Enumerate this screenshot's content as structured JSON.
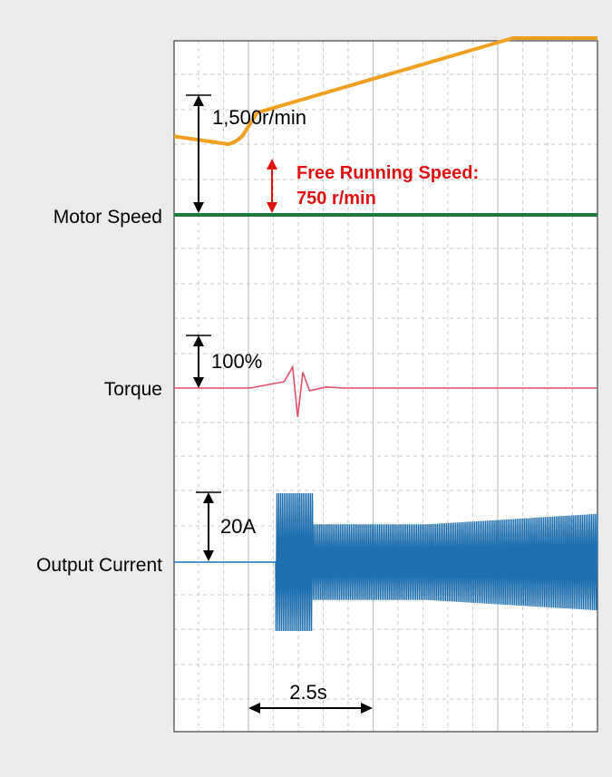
{
  "colors": {
    "background": "#ebebeb",
    "plot_background": "#ffffff",
    "motor_speed_reference": "#1b7a3a",
    "motor_speed": "#f0a020",
    "torque": "#e0506a",
    "output_current": "#1f6fae",
    "annotation": "#000000",
    "free_running_annotation": "#e01010",
    "grid": "#bbbbbb"
  },
  "labels": {
    "motor_speed": "Motor Speed",
    "torque": "Torque",
    "output_current": "Output Current"
  },
  "annotations": {
    "speed_scale": "1,500r/min",
    "free_running_line1": "Free Running Speed:",
    "free_running_line2": "750 r/min",
    "torque_scale": "100%",
    "current_scale": "20A",
    "time_scale": "2.5s"
  },
  "chart_data": {
    "type": "line",
    "grid": true,
    "x_unit": "s",
    "time_scale_division": 2.5,
    "series": [
      {
        "name": "Motor Speed",
        "unit": "r/min",
        "points": [
          [
            0,
            1000
          ],
          [
            3.2,
            900
          ],
          [
            4.2,
            1060
          ],
          [
            4.9,
            1300
          ],
          [
            20.0,
            2250
          ],
          [
            25.0,
            2250
          ]
        ]
      },
      {
        "name": "Torque",
        "unit": "%",
        "points": [
          [
            0,
            0
          ],
          [
            4.5,
            0
          ],
          [
            5.8,
            8
          ],
          [
            6.5,
            12
          ],
          [
            7.0,
            40
          ],
          [
            7.3,
            -55
          ],
          [
            7.6,
            30
          ],
          [
            8.0,
            -5
          ],
          [
            9.0,
            2
          ],
          [
            10.0,
            0
          ],
          [
            25.0,
            0
          ]
        ]
      },
      {
        "name": "Output Current",
        "unit": "A",
        "points": [
          [
            0,
            0
          ],
          [
            6.0,
            0
          ],
          [
            6.0,
            40
          ],
          [
            8.2,
            40
          ],
          [
            8.2,
            22
          ],
          [
            15.0,
            22
          ],
          [
            25.0,
            28
          ]
        ]
      }
    ]
  }
}
